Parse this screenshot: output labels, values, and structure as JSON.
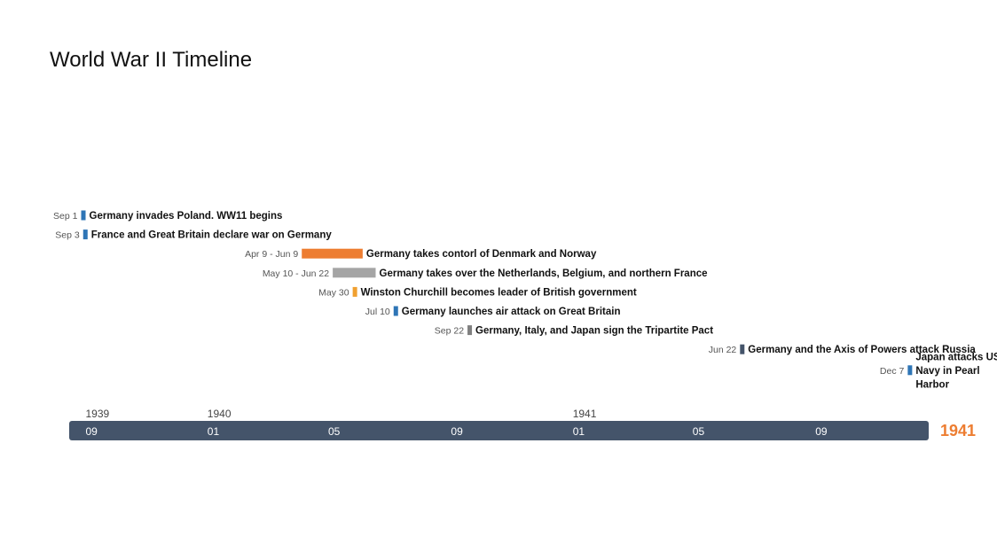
{
  "title": "World War II Timeline",
  "chart_data": {
    "type": "timeline",
    "title": "World War II Timeline",
    "axis": {
      "start": "1939-08-20",
      "end": "1941-12-28",
      "bar_color": "#44546a",
      "year_labels": [
        {
          "text": "1939",
          "date": "1939-09-01"
        },
        {
          "text": "1940",
          "date": "1940-01-01"
        },
        {
          "text": "1941",
          "date": "1941-01-01"
        }
      ],
      "month_ticks": [
        {
          "text": "09",
          "date": "1939-09-01"
        },
        {
          "text": "01",
          "date": "1940-01-01"
        },
        {
          "text": "05",
          "date": "1940-05-01"
        },
        {
          "text": "09",
          "date": "1940-09-01"
        },
        {
          "text": "01",
          "date": "1941-01-01"
        },
        {
          "text": "05",
          "date": "1941-05-01"
        },
        {
          "text": "09",
          "date": "1941-09-01"
        }
      ],
      "end_label": "1941",
      "end_label_color": "#ed7d31"
    },
    "events": [
      {
        "date_label": "Sep 1",
        "start": "1939-09-01",
        "end": "1939-09-01",
        "label": [
          "Germany invades Poland. WW11 begins"
        ],
        "color": "#2e75b6"
      },
      {
        "date_label": "Sep 3",
        "start": "1939-09-03",
        "end": "1939-09-03",
        "label": [
          "France and  Great Britain declare war on Germany"
        ],
        "color": "#2e75b6"
      },
      {
        "date_label": "Apr 9 - Jun 9",
        "start": "1940-04-09",
        "end": "1940-06-09",
        "label": [
          "Germany takes contorl of Denmark and Norway"
        ],
        "color": "#ed7d31"
      },
      {
        "date_label": "May 10 - Jun 22",
        "start": "1940-05-10",
        "end": "1940-06-22",
        "label": [
          "Germany takes over the Netherlands, Belgium, and northern France"
        ],
        "color": "#a5a5a5"
      },
      {
        "date_label": "May 30",
        "start": "1940-05-30",
        "end": "1940-05-30",
        "label": [
          "Winston Churchill becomes leader of British government"
        ],
        "color": "#f0a030"
      },
      {
        "date_label": "Jul 10",
        "start": "1940-07-10",
        "end": "1940-07-10",
        "label": [
          "Germany launches air attack on Great Britain"
        ],
        "color": "#2e75b6"
      },
      {
        "date_label": "Sep 22",
        "start": "1940-09-22",
        "end": "1940-09-22",
        "label": [
          "Germany, Italy, and Japan sign the Tripartite Pact"
        ],
        "color": "#7f7f7f"
      },
      {
        "date_label": "Jun 22",
        "start": "1941-06-22",
        "end": "1941-06-22",
        "label": [
          "Germany and the Axis of Powers attack Russia"
        ],
        "color": "#44546a"
      },
      {
        "date_label": "Dec 7",
        "start": "1941-12-07",
        "end": "1941-12-07",
        "label": [
          "Japan attacks US",
          "Navy in Pearl",
          "Harbor"
        ],
        "color": "#2e75b6"
      }
    ]
  }
}
